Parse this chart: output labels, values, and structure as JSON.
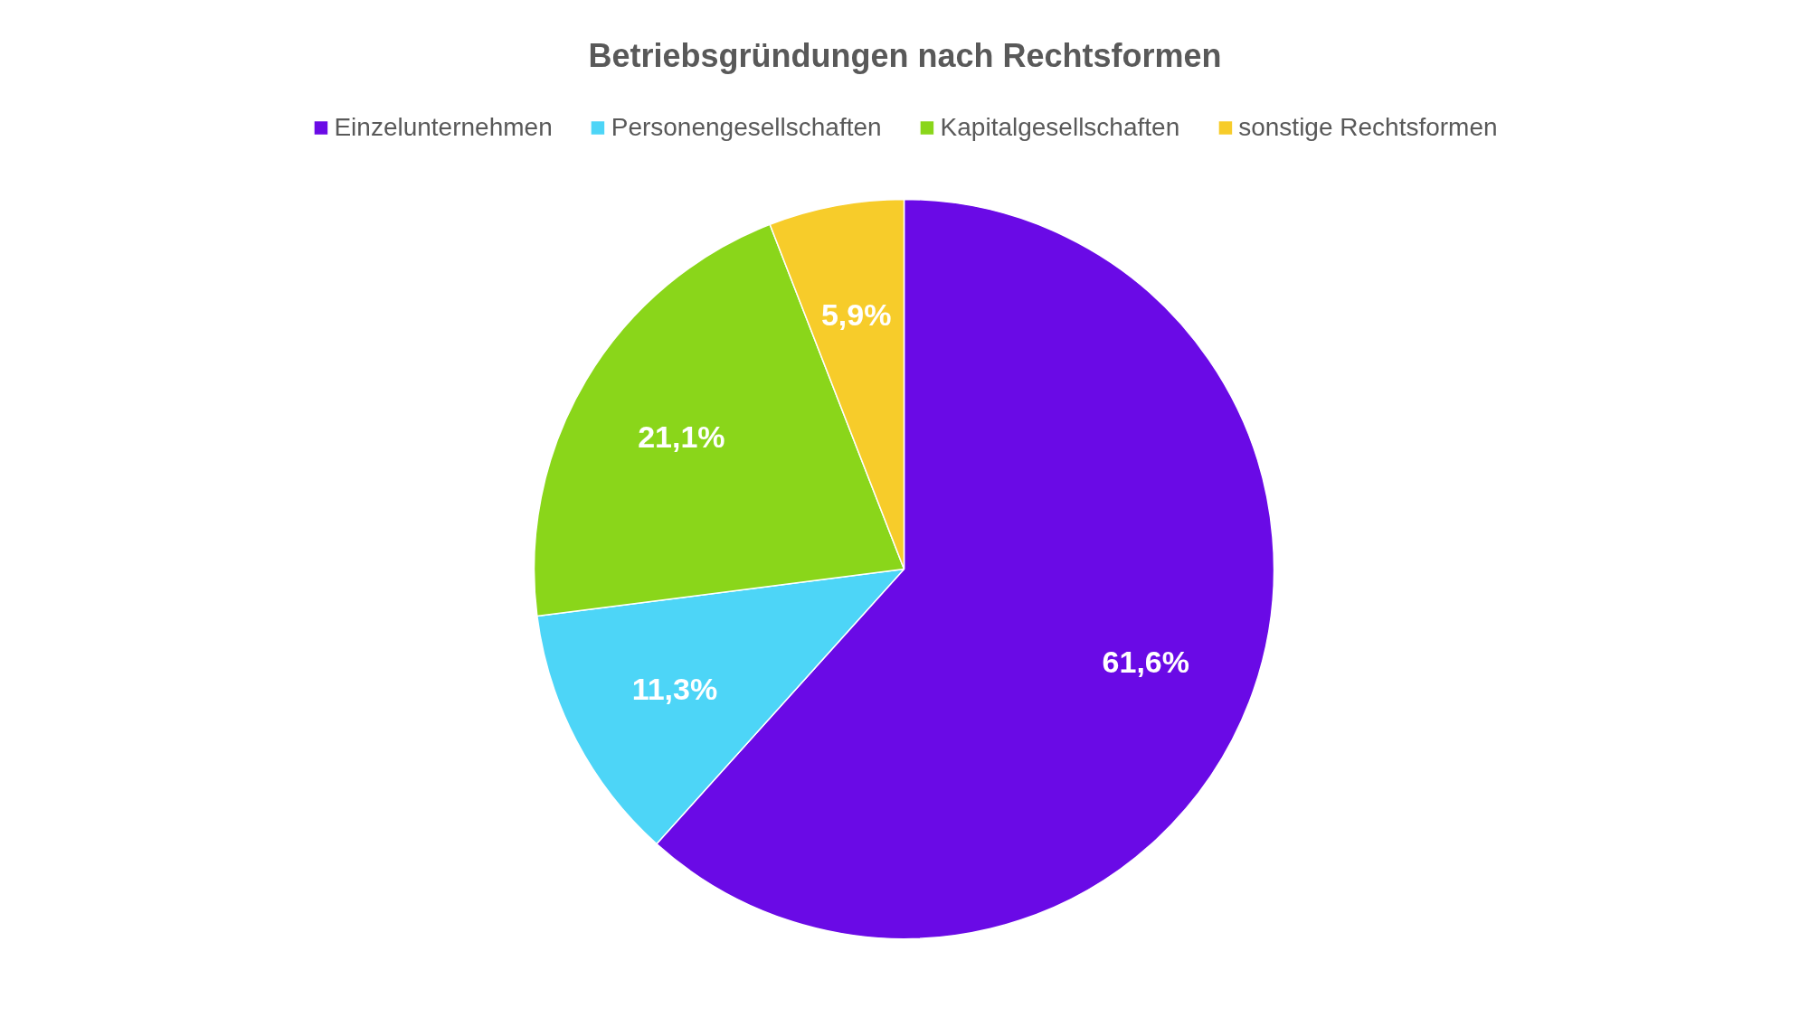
{
  "chart_data": {
    "type": "pie",
    "title": "Betriebsgründungen nach Rechtsformen",
    "categories": [
      "Einzelunternehmen",
      "Personengesellschaften",
      "Kapitalgesellschaften",
      "sonstige Rechtsformen"
    ],
    "values": [
      61.6,
      11.3,
      21.1,
      5.9
    ],
    "colors": [
      "#6a0ae6",
      "#4dd5f7",
      "#8ad61a",
      "#f7cc2a"
    ],
    "value_labels": [
      "61,6%",
      "11,3%",
      "21,1%",
      "5,9%"
    ],
    "legend": "top"
  }
}
